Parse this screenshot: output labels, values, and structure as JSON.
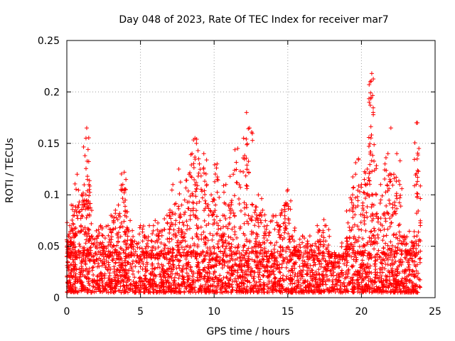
{
  "chart_data": {
    "type": "scatter",
    "title": "Day 048 of 2023, Rate Of TEC Index for receiver mar7",
    "xlabel": "GPS time / hours",
    "ylabel": "ROTI / TECUs",
    "xlim": [
      0,
      25
    ],
    "ylim": [
      0,
      0.25
    ],
    "xticks": [
      0,
      5,
      10,
      15,
      20,
      25
    ],
    "yticks": [
      0,
      0.05,
      0.1,
      0.15,
      0.2,
      0.25
    ],
    "xtick_labels": [
      "0",
      "5",
      "10",
      "15",
      "20",
      "25"
    ],
    "ytick_labels": [
      "0",
      "0.05",
      "0.1",
      "0.15",
      "0.2",
      "0.25"
    ],
    "grid": true,
    "marker": "+",
    "series": [
      {
        "name": "ROTI",
        "color": "#ff0000",
        "x": [
          0.05,
          0.1,
          0.2,
          0.3,
          0.4,
          0.5,
          0.7,
          0.8,
          1.0,
          1.2,
          1.3,
          1.35,
          1.4,
          1.5,
          1.7,
          2.0,
          2.3,
          2.5,
          2.8,
          3.0,
          3.3,
          3.5,
          3.8,
          3.9,
          4.0,
          4.3,
          4.6,
          5.0,
          5.3,
          5.6,
          6.0,
          6.4,
          6.8,
          7.0,
          7.2,
          7.4,
          7.6,
          7.8,
          8.0,
          8.3,
          8.5,
          8.7,
          8.8,
          9.0,
          9.3,
          9.5,
          9.8,
          10.0,
          10.2,
          10.4,
          10.6,
          10.8,
          11.0,
          11.3,
          11.6,
          12.0,
          12.2,
          12.4,
          12.6,
          12.8,
          13.0,
          13.3,
          13.6,
          14.0,
          14.3,
          14.6,
          14.9,
          15.0,
          15.3,
          15.6,
          16.0,
          16.5,
          17.0,
          17.3,
          17.6,
          18.0,
          18.4,
          18.8,
          19.0,
          19.2,
          19.4,
          19.6,
          19.8,
          20.0,
          20.2,
          20.4,
          20.6,
          20.7,
          20.8,
          21.0,
          21.3,
          21.6,
          21.8,
          22.0,
          22.2,
          22.4,
          22.6,
          22.9,
          23.2,
          23.5,
          23.7,
          23.8,
          23.9
        ],
        "y": [
          0.015,
          0.06,
          0.07,
          0.09,
          0.065,
          0.08,
          0.12,
          0.09,
          0.1,
          0.095,
          0.155,
          0.165,
          0.118,
          0.11,
          0.06,
          0.065,
          0.07,
          0.05,
          0.07,
          0.08,
          0.085,
          0.09,
          0.11,
          0.122,
          0.105,
          0.075,
          0.055,
          0.07,
          0.06,
          0.07,
          0.075,
          0.065,
          0.08,
          0.085,
          0.11,
          0.075,
          0.125,
          0.09,
          0.095,
          0.12,
          0.14,
          0.155,
          0.15,
          0.13,
          0.14,
          0.11,
          0.1,
          0.095,
          0.13,
          0.075,
          0.08,
          0.11,
          0.09,
          0.12,
          0.145,
          0.155,
          0.18,
          0.165,
          0.09,
          0.085,
          0.1,
          0.085,
          0.07,
          0.08,
          0.07,
          0.085,
          0.09,
          0.105,
          0.06,
          0.05,
          0.06,
          0.06,
          0.07,
          0.06,
          0.07,
          0.03,
          0.035,
          0.04,
          0.055,
          0.085,
          0.1,
          0.12,
          0.135,
          0.11,
          0.115,
          0.125,
          0.21,
          0.218,
          0.18,
          0.1,
          0.11,
          0.13,
          0.14,
          0.165,
          0.12,
          0.14,
          0.11,
          0.06,
          0.045,
          0.05,
          0.055,
          0.17,
          0.145
        ]
      }
    ],
    "dense_band": {
      "description": "Dense cloud of points covering the full 0-24 h range",
      "x_range": [
        0,
        24
      ],
      "y_core": [
        0.005,
        0.045
      ]
    }
  }
}
